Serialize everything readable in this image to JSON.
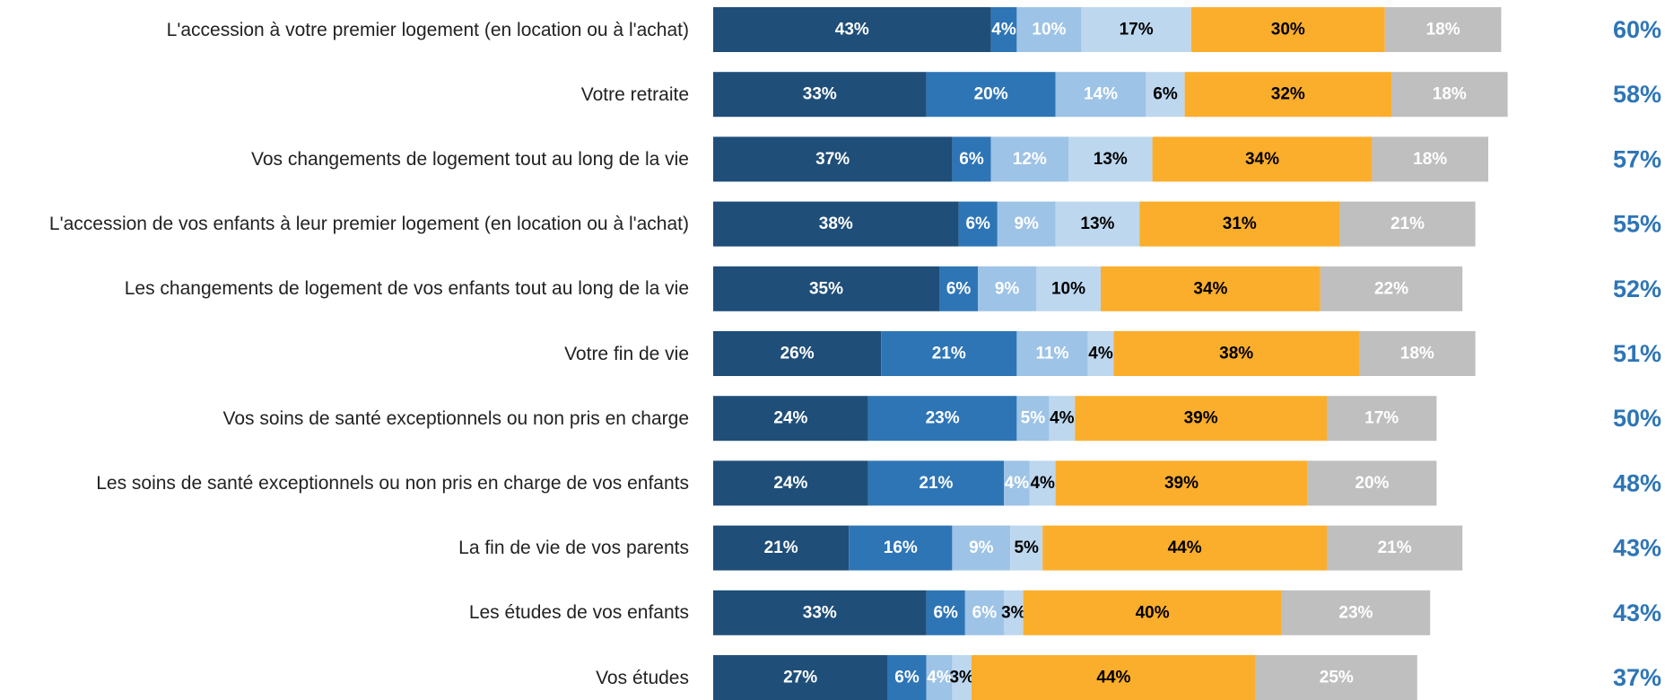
{
  "chart_data": {
    "type": "stacked-bar-horizontal",
    "categories": [
      "L'accession à votre premier logement (en location ou à l'achat)",
      "Votre retraite",
      "Vos changements de logement tout au long de la vie",
      "L'accession de vos enfants à leur premier logement (en location ou à l'achat)",
      "Les changements de logement de vos enfants tout au long de la vie",
      "Votre fin de vie",
      "Vos soins de santé exceptionnels ou non pris en charge",
      "Les soins de santé exceptionnels ou non pris en charge de vos enfants",
      "La fin de vie de vos parents",
      "Les études de vos enfants",
      "Vos études"
    ],
    "series": [
      {
        "color": "#1f4e79",
        "label_color": "#ffffff",
        "values": [
          43,
          33,
          37,
          38,
          35,
          26,
          24,
          24,
          21,
          33,
          27
        ],
        "value_labels": [
          "43%",
          "33%",
          "37%",
          "38%",
          "35%",
          "26%",
          "24%",
          "24%",
          "21%",
          "33%",
          "27%"
        ]
      },
      {
        "color": "#2e75b6",
        "label_color": "#ffffff",
        "values": [
          4,
          20,
          6,
          6,
          6,
          21,
          23,
          21,
          16,
          6,
          6
        ],
        "value_labels": [
          "4%",
          "20%",
          "6%",
          "6%",
          "6%",
          "21%",
          "23%",
          "21%",
          "16%",
          "6%",
          "6%"
        ]
      },
      {
        "color": "#9dc3e6",
        "label_color": "#ffffff",
        "values": [
          10,
          14,
          12,
          9,
          9,
          11,
          5,
          4,
          9,
          6,
          4
        ],
        "value_labels": [
          "10%",
          "14%",
          "12%",
          "9%",
          "9%",
          "11%",
          "5%",
          "4%",
          "9%",
          "6%",
          "4%"
        ]
      },
      {
        "color": "#bdd7ee",
        "label_color": "#000000",
        "values": [
          17,
          6,
          13,
          13,
          10,
          4,
          4,
          4,
          5,
          3,
          3
        ],
        "value_labels": [
          "17%",
          "6%",
          "13%",
          "13%",
          "10%",
          "4%",
          "4%",
          "4%",
          "5%",
          "3%",
          "3%"
        ]
      },
      {
        "color": "#fbae2c",
        "label_color": "#000000",
        "values": [
          30,
          32,
          34,
          31,
          34,
          38,
          39,
          39,
          44,
          40,
          44
        ],
        "value_labels": [
          "30%",
          "32%",
          "34%",
          "31%",
          "34%",
          "38%",
          "39%",
          "39%",
          "44%",
          "40%",
          "44%"
        ]
      },
      {
        "color": "#bfbfbf",
        "label_color": "#ffffff",
        "values": [
          18,
          18,
          18,
          21,
          22,
          18,
          17,
          20,
          21,
          23,
          25
        ],
        "value_labels": [
          "18%",
          "18%",
          "18%",
          "21%",
          "22%",
          "18%",
          "17%",
          "20%",
          "21%",
          "23%",
          "25%"
        ]
      }
    ],
    "totals": {
      "color": "#2e75b6",
      "values": [
        60,
        58,
        57,
        55,
        52,
        51,
        50,
        48,
        43,
        43,
        37
      ],
      "value_labels": [
        "60%",
        "58%",
        "57%",
        "55%",
        "52%",
        "51%",
        "50%",
        "48%",
        "43%",
        "43%",
        "37%"
      ]
    }
  }
}
